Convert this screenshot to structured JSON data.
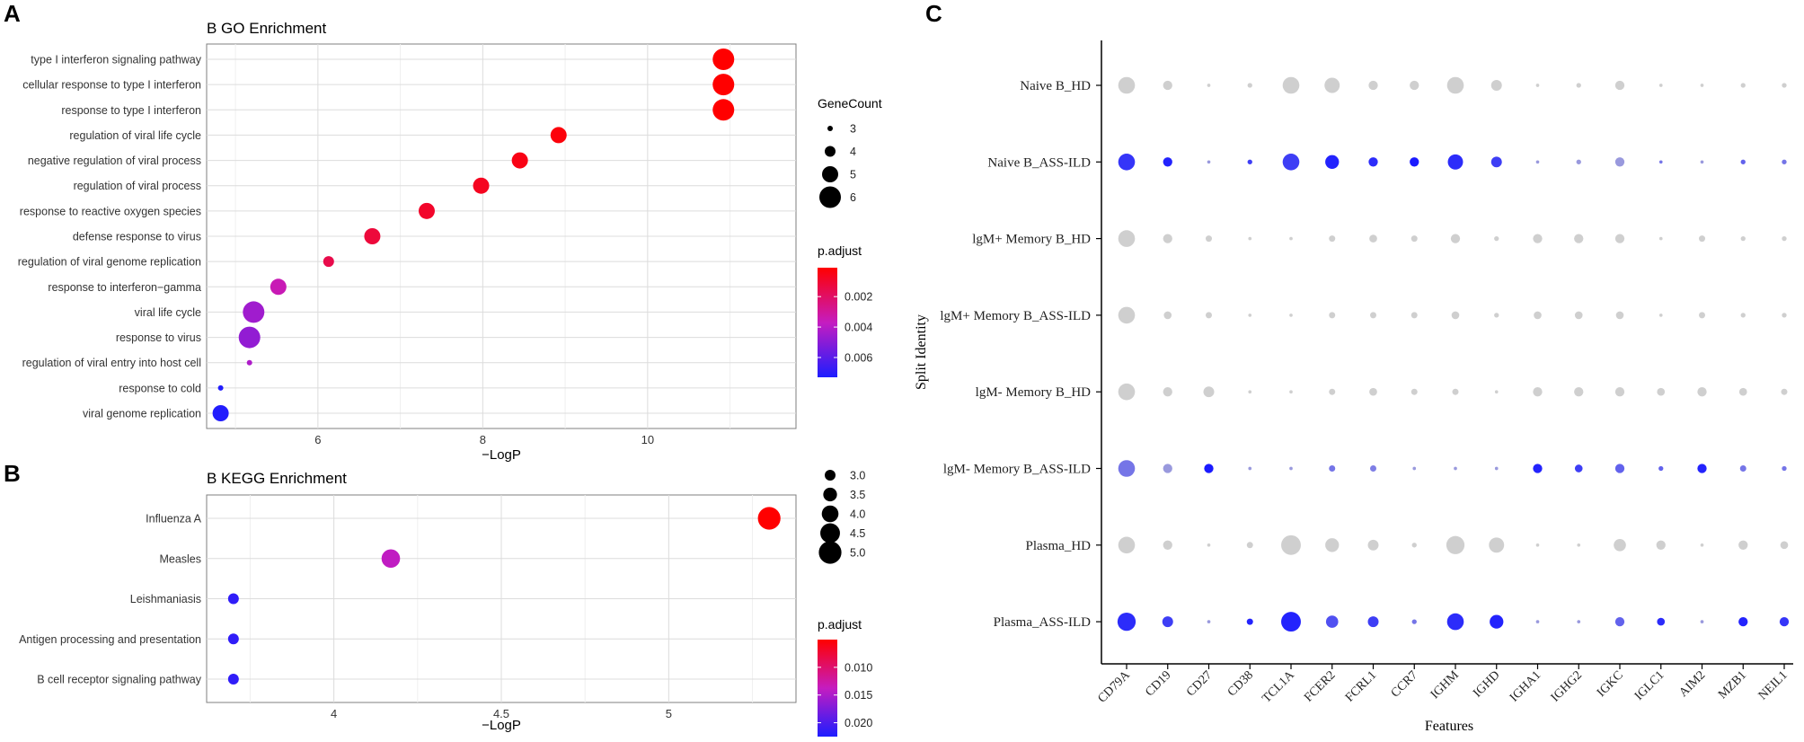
{
  "panel_letters": {
    "a": "A",
    "b": "B",
    "c": "C"
  },
  "chart_data": [
    {
      "id": "go",
      "type": "scatter",
      "title": "B GO Enrichment",
      "xlabel": "−LogP",
      "ylabel": "",
      "xlim": [
        4.65,
        11.8
      ],
      "xticks": [
        6,
        8,
        10
      ],
      "categories": [
        "type I interferon signaling pathway",
        "cellular response to type I interferon",
        "response to type I interferon",
        "regulation of viral life cycle",
        "negative regulation of viral process",
        "regulation of viral process",
        "response to reactive oxygen species",
        "defense response to virus",
        "regulation of viral genome replication",
        "response to interferon−gamma",
        "viral life cycle",
        "response to virus",
        "regulation of viral entry into host cell",
        "response to cold",
        "viral genome replication"
      ],
      "x": [
        10.92,
        10.92,
        10.92,
        8.92,
        8.45,
        7.98,
        7.32,
        6.66,
        6.13,
        5.52,
        5.22,
        5.17,
        5.17,
        4.82,
        4.82
      ],
      "gene_count": [
        6,
        6,
        6,
        5,
        5,
        5,
        5,
        5,
        4,
        5,
        6,
        6,
        3,
        3,
        5
      ],
      "p_adjust": [
        0.0001,
        0.0001,
        0.0001,
        0.0003,
        0.0005,
        0.0007,
        0.0009,
        0.0012,
        0.0015,
        0.0035,
        0.0045,
        0.0048,
        0.0042,
        0.0072,
        0.0072
      ],
      "size_legend": {
        "title": "GeneCount",
        "values": [
          3,
          4,
          5,
          6
        ],
        "labels": [
          "3",
          "4",
          "5",
          "6"
        ]
      },
      "color_legend": {
        "title": "p.adjust",
        "min": 0.0001,
        "max": 0.0073,
        "ticks": [
          0.002,
          0.004,
          0.006
        ],
        "tick_labels": [
          "0.002",
          "0.004",
          "0.006"
        ]
      },
      "colors": {
        "low": "#ff0000",
        "mid": "#c51cc0",
        "high": "#1d1dff"
      }
    },
    {
      "id": "kegg",
      "type": "scatter",
      "title": "B KEGG Enrichment",
      "xlabel": "−LogP",
      "ylabel": "",
      "xlim": [
        3.62,
        5.38
      ],
      "xticks": [
        4.0,
        4.5,
        5.0
      ],
      "categories": [
        "Influenza A",
        "Measles",
        "Leishmaniasis",
        "Antigen processing and presentation",
        "B cell receptor signaling pathway"
      ],
      "x": [
        5.3,
        4.17,
        3.7,
        3.7,
        3.7
      ],
      "gene_count": [
        5,
        4.3,
        3,
        3,
        3
      ],
      "p_adjust": [
        0.005,
        0.014,
        0.0215,
        0.0215,
        0.0215
      ],
      "size_legend": {
        "title": "",
        "values": [
          3.0,
          3.5,
          4.0,
          4.5,
          5.0
        ],
        "labels": [
          "3.0",
          "3.5",
          "4.0",
          "4.5",
          "5.0"
        ]
      },
      "color_legend": {
        "title": "p.adjust",
        "min": 0.005,
        "max": 0.0225,
        "ticks": [
          0.01,
          0.015,
          0.02
        ],
        "tick_labels": [
          "0.010",
          "0.015",
          "0.020"
        ]
      },
      "colors": {
        "low": "#ff0000",
        "mid": "#c51cc0",
        "high": "#1d1dff"
      }
    },
    {
      "id": "dot",
      "type": "scatter",
      "title": "",
      "xlabel": "Features",
      "ylabel": "Split Identity",
      "features": [
        "CD79A",
        "CD19",
        "CD27",
        "CD38",
        "TCL1A",
        "FCER2",
        "FCRL1",
        "CCR7",
        "IGHM",
        "IGHD",
        "IGHA1",
        "IGHG2",
        "IGKC",
        "IGLC1",
        "AIM2",
        "MZB1",
        "NEIL1"
      ],
      "groups": [
        "Naive B_HD",
        "Naive B_ASS-ILD",
        "lgM+ Memory B_HD",
        "lgM+ Memory B_ASS-ILD",
        "lgM- Memory B_HD",
        "lgM- Memory B_ASS-ILD",
        "Plasma_HD",
        "Plasma_ASS-ILD"
      ],
      "pct_expressed": [
        [
          10,
          5,
          1,
          2,
          10,
          9,
          5,
          5,
          10,
          6,
          1,
          2,
          5,
          1,
          1,
          2,
          2
        ],
        [
          10,
          5,
          1,
          2,
          10,
          8,
          5,
          5,
          9,
          6,
          1,
          2,
          5,
          1,
          1,
          2,
          2
        ],
        [
          10,
          5,
          3,
          1,
          1,
          3,
          4,
          3,
          5,
          2,
          5,
          5,
          5,
          1,
          3,
          2,
          2
        ],
        [
          10,
          4,
          3,
          1,
          1,
          3,
          3,
          3,
          4,
          2,
          4,
          4,
          4,
          1,
          3,
          2,
          2
        ],
        [
          10,
          5,
          6,
          1,
          1,
          3,
          4,
          3,
          3,
          1,
          5,
          5,
          5,
          4,
          5,
          4,
          3
        ],
        [
          10,
          5,
          5,
          1,
          1,
          3,
          3,
          1,
          1,
          1,
          5,
          4,
          5,
          2,
          5,
          3,
          2
        ],
        [
          10,
          5,
          1,
          3,
          12,
          8,
          6,
          2,
          11,
          9,
          1,
          1,
          7,
          5,
          1,
          5,
          4
        ],
        [
          11,
          6,
          1,
          3,
          12,
          7,
          6,
          2,
          10,
          8,
          1,
          1,
          5,
          4,
          1,
          5,
          5
        ]
      ],
      "avg_expression": [
        [
          0,
          0,
          0,
          0,
          0,
          0,
          0,
          0,
          0,
          0,
          0,
          0,
          0,
          0,
          0,
          0,
          0
        ],
        [
          0.85,
          0.95,
          0.3,
          0.8,
          0.8,
          0.95,
          0.9,
          1.0,
          0.9,
          0.8,
          0.3,
          0.3,
          0.3,
          0.5,
          0.3,
          0.6,
          0.5
        ],
        [
          0,
          0,
          0,
          0,
          0,
          0,
          0,
          0,
          0,
          0,
          0,
          0,
          0,
          0,
          0,
          0,
          0
        ],
        [
          0,
          0,
          0,
          0,
          0,
          0,
          0,
          0,
          0,
          0,
          0,
          0,
          0,
          0,
          0,
          0,
          0
        ],
        [
          0,
          0,
          0,
          0,
          0,
          0,
          0,
          0,
          0,
          0,
          0,
          0,
          0,
          0,
          0,
          0,
          0
        ],
        [
          0.5,
          0.3,
          1.0,
          0.3,
          0.3,
          0.5,
          0.45,
          0.3,
          0.3,
          0.3,
          0.95,
          0.8,
          0.6,
          0.6,
          0.95,
          0.5,
          0.5
        ],
        [
          0,
          0,
          0,
          0,
          0,
          0,
          0,
          0,
          0,
          0,
          0,
          0,
          0,
          0,
          0,
          0,
          0
        ],
        [
          0.9,
          0.8,
          0.3,
          0.95,
          0.95,
          0.7,
          0.8,
          0.5,
          0.9,
          0.95,
          0.3,
          0.3,
          0.6,
          0.9,
          0.3,
          0.95,
          0.85
        ]
      ],
      "colors": {
        "low": "#cfcfcf",
        "high": "#1a1aff"
      }
    }
  ]
}
